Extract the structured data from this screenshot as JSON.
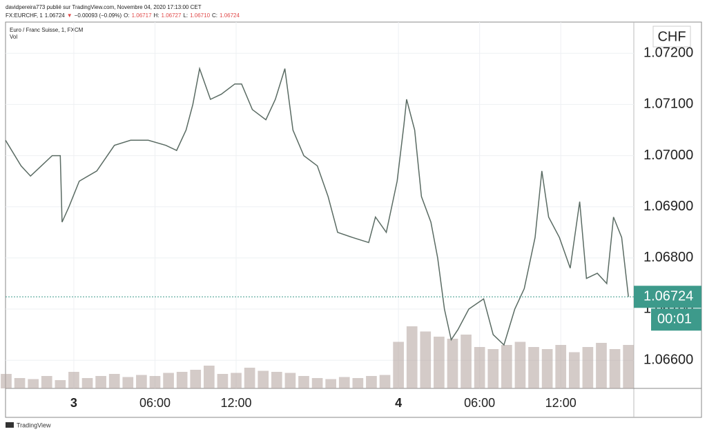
{
  "header": {
    "line1": "davidpereira773 publié sur TradingView.com, Novembre 04, 2020 17:13:00 CET",
    "symbol": "FX:EURCHF, 1",
    "last": "1.06724",
    "arrow": "▼",
    "change": "−0.00093 (−0.09%)",
    "o_label": "O:",
    "o": "1.06717",
    "h_label": "H:",
    "h": "1.06727",
    "l_label": "L:",
    "l": "1.06710",
    "c_label": "C:",
    "c": "1.06724"
  },
  "footer": {
    "brand": "TradingView"
  },
  "chart_data": {
    "type": "line",
    "title": "Euro / Franc Suisse, 1, FXCM",
    "volume_label": "Vol",
    "currency": "CHF",
    "grid": true,
    "xlim": [
      -5.05,
      41.4
    ],
    "xticks": [
      {
        "value": 0,
        "label": "3"
      },
      {
        "value": 6,
        "label": "06:00"
      },
      {
        "value": 12,
        "label": "12:00"
      },
      {
        "value": 24,
        "label": "4"
      },
      {
        "value": 30,
        "label": "06:00"
      },
      {
        "value": 36,
        "label": "12:00"
      }
    ],
    "ylim": [
      1.06545,
      1.07261
    ],
    "yticks": [
      {
        "value": 1.066,
        "label": "1.06600"
      },
      {
        "value": 1.067,
        "label": "1.06700"
      },
      {
        "value": 1.068,
        "label": "1.06800"
      },
      {
        "value": 1.069,
        "label": "1.06900"
      },
      {
        "value": 1.07,
        "label": "1.07000"
      },
      {
        "value": 1.071,
        "label": "1.07100"
      },
      {
        "value": 1.072,
        "label": "1.07200"
      }
    ],
    "y2lim": [
      0,
      100
    ],
    "last_price": 1.06724,
    "countdown": "00:01",
    "last_color": "#3d9a8b",
    "series": [
      {
        "name": "EURCHF",
        "color": "#5a6b63",
        "x": [
          -5.05,
          -3.9,
          -3.2,
          -2.4,
          -1.6,
          -1.0,
          -0.87,
          -0.36,
          0.4,
          1.7,
          3.0,
          4.2,
          5.5,
          6.8,
          7.6,
          8.3,
          8.8,
          9.3,
          10.1,
          10.9,
          11.9,
          12.4,
          13.2,
          14.2,
          14.9,
          15.6,
          16.2,
          17,
          18,
          18.8,
          19.5,
          20.6,
          21.8,
          22.3,
          23.1,
          23.9,
          24.4,
          24.6,
          25.2,
          25.7,
          26.4,
          26.9,
          27.4,
          27.9,
          28.4,
          29.2,
          30.3,
          31.0,
          31.8,
          32.6,
          33.3,
          34.1,
          34.6,
          35.1,
          35.9,
          36.7,
          37.4,
          37.9,
          38.7,
          39.4,
          39.9,
          40.5,
          41.0
        ],
        "values": [
          1.0703,
          1.0698,
          1.0696,
          1.0698,
          1.07,
          1.07,
          1.0687,
          1.069,
          1.0695,
          1.0697,
          1.0702,
          1.0703,
          1.0703,
          1.0702,
          1.0701,
          1.0705,
          1.071,
          1.0717,
          1.0711,
          1.0712,
          1.0714,
          1.0714,
          1.0709,
          1.0707,
          1.0711,
          1.0717,
          1.0705,
          1.07,
          1.0698,
          1.0692,
          1.0685,
          1.0684,
          1.0683,
          1.0688,
          1.0685,
          1.0695,
          1.0706,
          1.0711,
          1.0705,
          1.0692,
          1.0687,
          1.068,
          1.067,
          1.0664,
          1.0666,
          1.067,
          1.0672,
          1.0665,
          1.0663,
          1.067,
          1.0674,
          1.0684,
          1.0697,
          1.0688,
          1.0684,
          1.0678,
          1.0691,
          1.0676,
          1.0677,
          1.0675,
          1.0688,
          1.0684,
          1.06724
        ]
      },
      {
        "name": "Vol",
        "color": "#b7a9a4",
        "axis": "y2",
        "type": "bar",
        "x": [
          -5,
          -4,
          -3,
          -2,
          -1,
          0,
          1,
          2,
          3,
          4,
          5,
          6,
          7,
          8,
          9,
          10,
          11,
          12,
          13,
          14,
          15,
          16,
          17,
          18,
          19,
          20,
          21,
          22,
          23,
          24,
          25,
          26,
          27,
          28,
          29,
          30,
          31,
          32,
          33,
          34,
          35,
          36,
          37,
          38,
          39,
          40,
          41
        ],
        "values": [
          14,
          10,
          9,
          12,
          8,
          16,
          10,
          12,
          14,
          11,
          13,
          12,
          15,
          16,
          18,
          22,
          14,
          15,
          20,
          17,
          16,
          15,
          12,
          10,
          9,
          11,
          10,
          12,
          13,
          45,
          60,
          55,
          50,
          48,
          52,
          40,
          38,
          42,
          45,
          40,
          38,
          42,
          35,
          40,
          44,
          38,
          42
        ]
      }
    ]
  }
}
